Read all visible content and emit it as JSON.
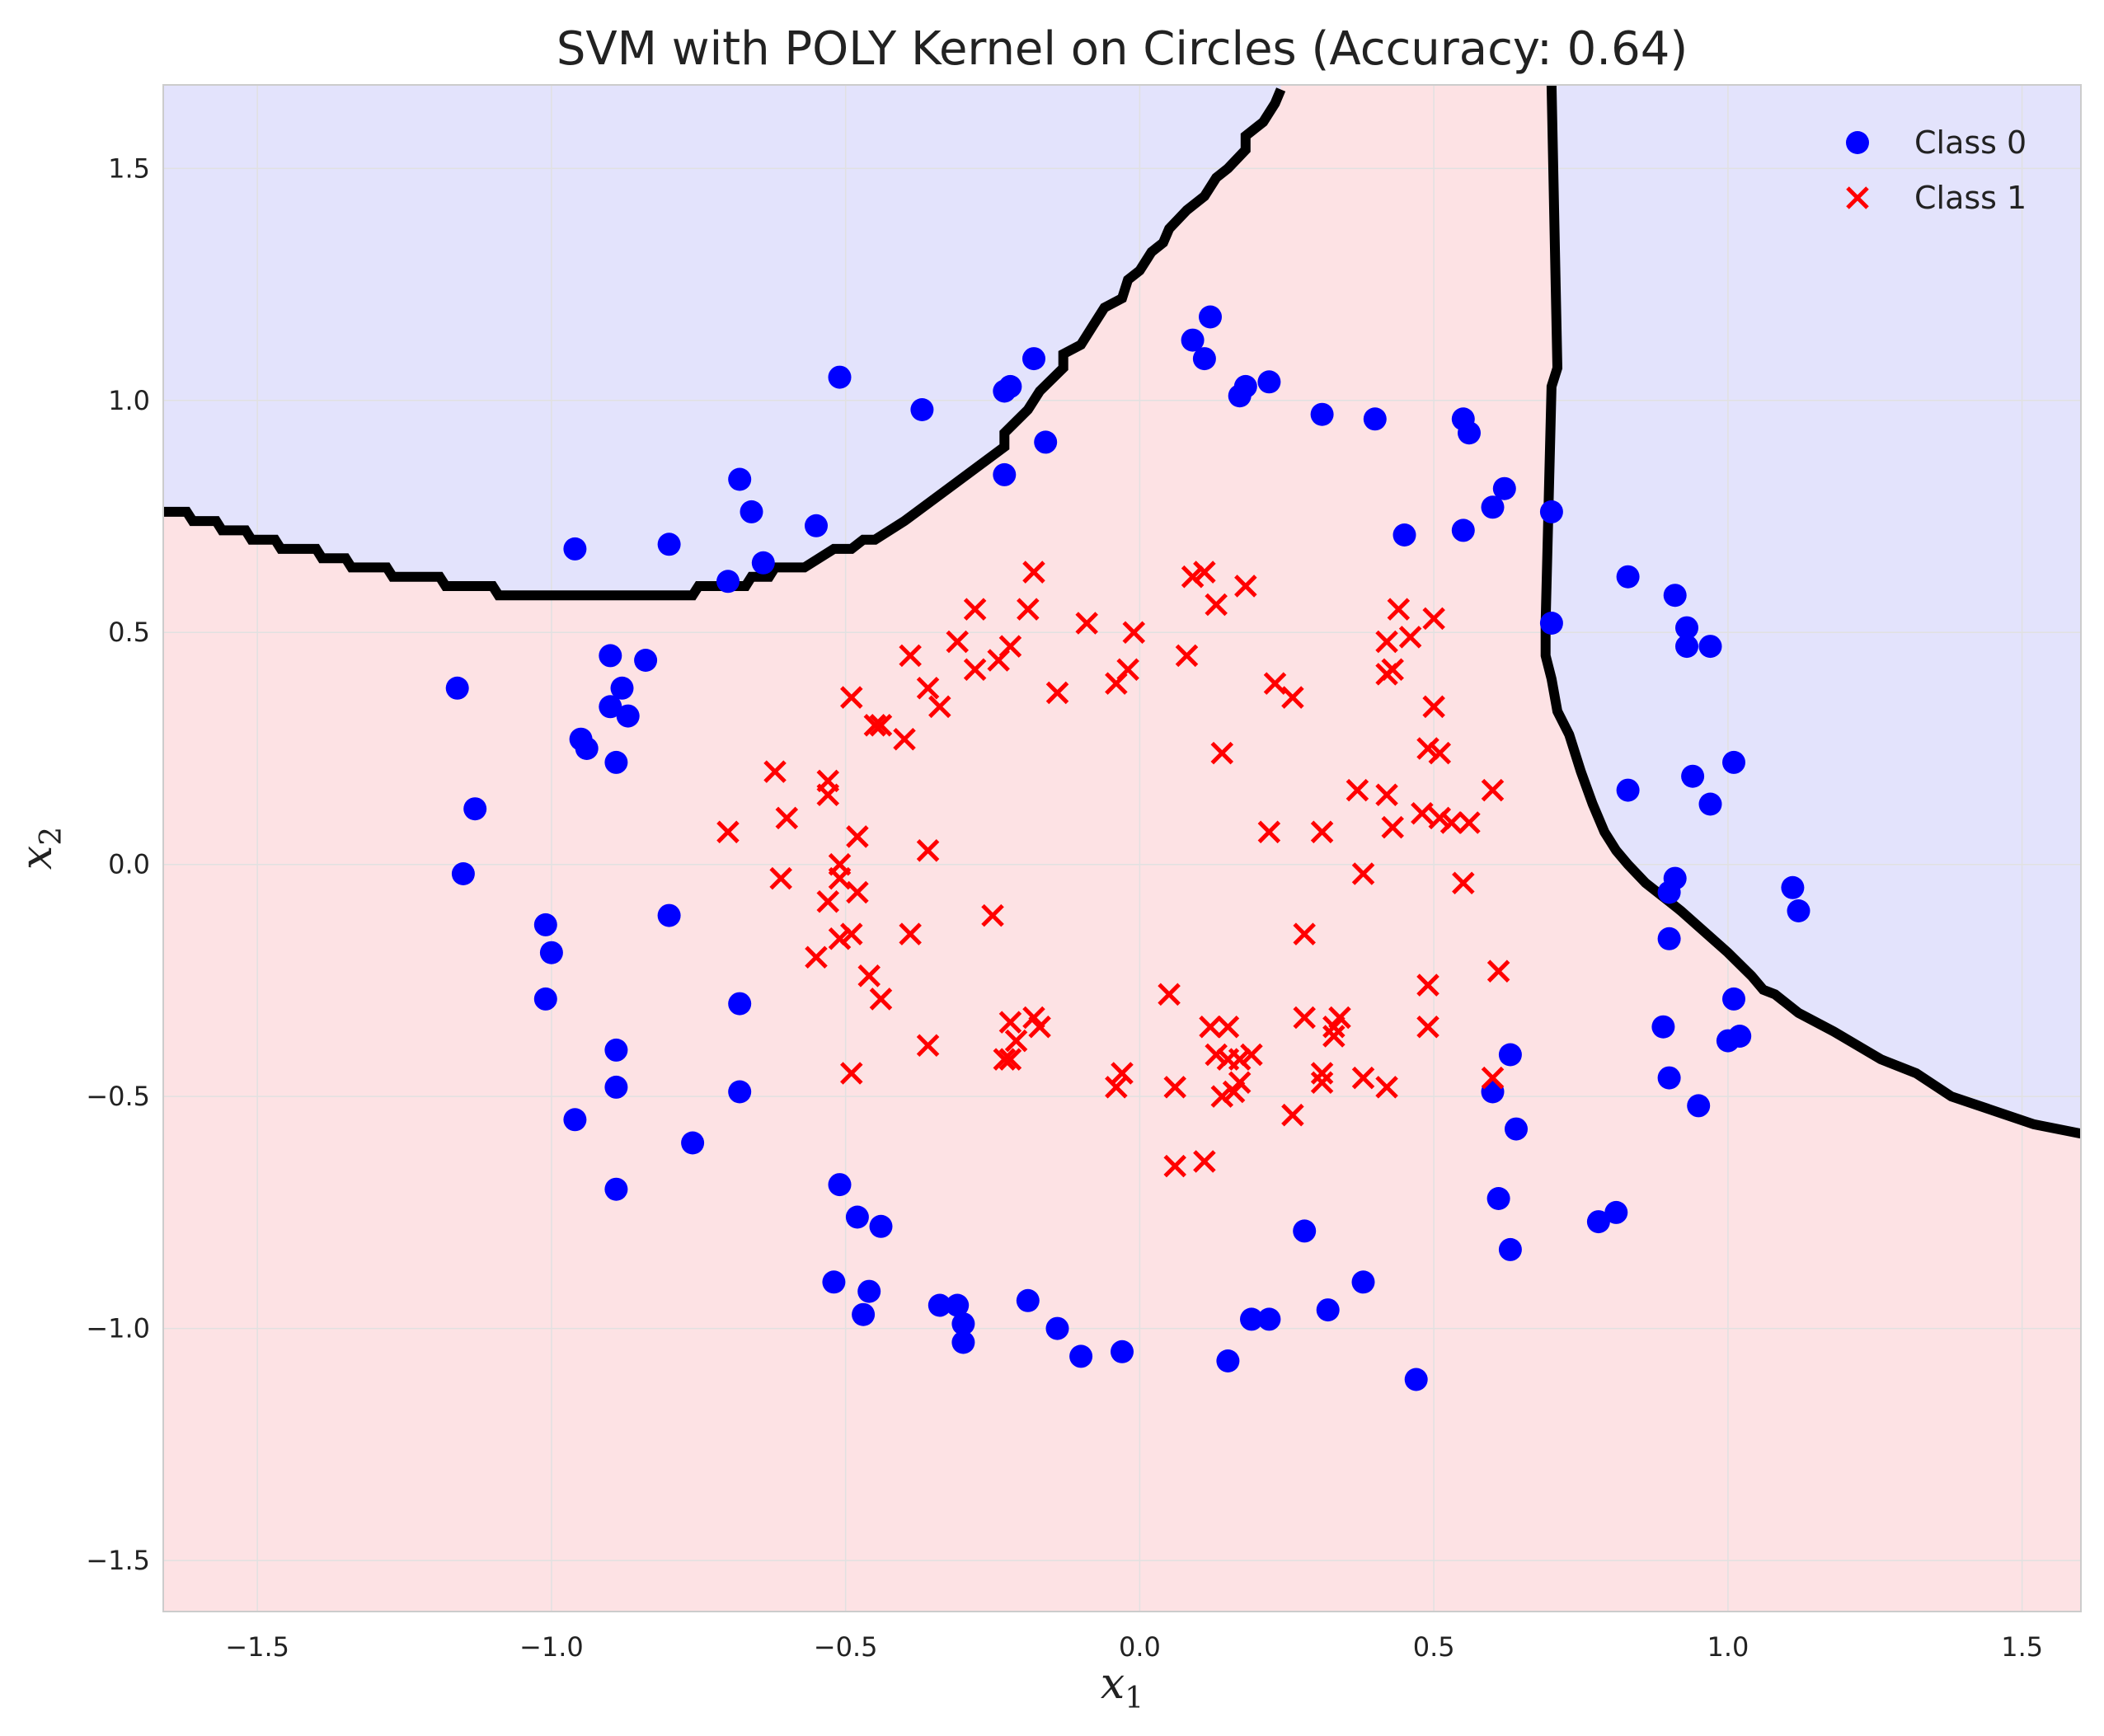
{
  "chart_data": {
    "type": "scatter",
    "title": "SVM with POLY Kernel on Circles (Accuracy: 0.64)",
    "xlabel": "x",
    "xlabel_sub": "1",
    "ylabel": "x",
    "ylabel_sub": "2",
    "xlim": [
      -1.66,
      1.6
    ],
    "ylim": [
      -1.61,
      1.68
    ],
    "xticks": [
      -1.5,
      -1.0,
      -0.5,
      0.0,
      0.5,
      1.0,
      1.5
    ],
    "yticks": [
      -1.5,
      -1.0,
      -0.5,
      0.0,
      0.5,
      1.0,
      1.5
    ],
    "xtick_labels": [
      "−1.5",
      "−1.0",
      "−0.5",
      "0.0",
      "0.5",
      "1.0",
      "1.5"
    ],
    "ytick_labels": [
      "−1.5",
      "−1.0",
      "−0.5",
      "0.0",
      "0.5",
      "1.0",
      "1.5"
    ],
    "grid": true,
    "legend_position": "top-right",
    "colors": {
      "class0": "#0000ff",
      "class1": "#ff0000",
      "region0": "#e3e3fc",
      "region1": "#fde2e4",
      "boundary": "#000000"
    },
    "series": [
      {
        "name": "Class 0",
        "marker": "circle",
        "points": [
          [
            -0.51,
            1.05
          ],
          [
            -0.37,
            0.98
          ],
          [
            -0.23,
            1.02
          ],
          [
            -0.22,
            1.03
          ],
          [
            -0.18,
            1.09
          ],
          [
            -0.23,
            0.84
          ],
          [
            -0.16,
            0.91
          ],
          [
            0.09,
            1.13
          ],
          [
            0.12,
            1.18
          ],
          [
            0.11,
            1.09
          ],
          [
            0.17,
            1.01
          ],
          [
            0.18,
            1.03
          ],
          [
            0.22,
            1.04
          ],
          [
            0.31,
            0.97
          ],
          [
            0.4,
            0.96
          ],
          [
            0.55,
            0.96
          ],
          [
            0.56,
            0.93
          ],
          [
            0.55,
            0.72
          ],
          [
            0.45,
            0.71
          ],
          [
            0.6,
            0.77
          ],
          [
            0.62,
            0.81
          ],
          [
            -0.96,
            0.68
          ],
          [
            -0.8,
            0.69
          ],
          [
            -0.68,
            0.83
          ],
          [
            -0.66,
            0.76
          ],
          [
            -0.7,
            0.61
          ],
          [
            -0.64,
            0.65
          ],
          [
            -0.55,
            0.73
          ],
          [
            -1.16,
            0.38
          ],
          [
            -0.9,
            0.45
          ],
          [
            -0.84,
            0.44
          ],
          [
            -0.88,
            0.38
          ],
          [
            -0.9,
            0.34
          ],
          [
            -0.87,
            0.32
          ],
          [
            -0.95,
            0.27
          ],
          [
            -0.94,
            0.25
          ],
          [
            -0.89,
            0.22
          ],
          [
            -1.13,
            0.12
          ],
          [
            -1.15,
            -0.02
          ],
          [
            -0.8,
            -0.11
          ],
          [
            -1.01,
            -0.13
          ],
          [
            -1.0,
            -0.19
          ],
          [
            -1.01,
            -0.29
          ],
          [
            -0.68,
            -0.3
          ],
          [
            -0.89,
            -0.4
          ],
          [
            -0.89,
            -0.48
          ],
          [
            -0.96,
            -0.55
          ],
          [
            -0.68,
            -0.49
          ],
          [
            -0.76,
            -0.6
          ],
          [
            -0.89,
            -0.7
          ],
          [
            -0.51,
            -0.69
          ],
          [
            -0.48,
            -0.76
          ],
          [
            -0.44,
            -0.78
          ],
          [
            -0.52,
            -0.9
          ],
          [
            -0.46,
            -0.92
          ],
          [
            -0.47,
            -0.97
          ],
          [
            -0.34,
            -0.95
          ],
          [
            -0.31,
            -0.95
          ],
          [
            -0.3,
            -0.99
          ],
          [
            -0.3,
            -1.03
          ],
          [
            -0.19,
            -0.94
          ],
          [
            -0.14,
            -1.0
          ],
          [
            -0.1,
            -1.06
          ],
          [
            -0.03,
            -1.05
          ],
          [
            0.15,
            -1.07
          ],
          [
            0.19,
            -0.98
          ],
          [
            0.22,
            -0.98
          ],
          [
            0.28,
            -0.79
          ],
          [
            0.32,
            -0.96
          ],
          [
            0.38,
            -0.9
          ],
          [
            0.47,
            -1.11
          ],
          [
            0.6,
            -0.49
          ],
          [
            0.63,
            -0.41
          ],
          [
            0.64,
            -0.57
          ],
          [
            0.61,
            -0.72
          ],
          [
            0.63,
            -0.83
          ],
          [
            0.78,
            -0.77
          ],
          [
            0.81,
            -0.75
          ],
          [
            0.7,
            0.76
          ],
          [
            0.7,
            0.52
          ],
          [
            0.83,
            0.62
          ],
          [
            0.91,
            0.58
          ],
          [
            0.93,
            0.51
          ],
          [
            0.93,
            0.47
          ],
          [
            0.97,
            0.47
          ],
          [
            0.83,
            0.16
          ],
          [
            0.94,
            0.19
          ],
          [
            0.97,
            0.13
          ],
          [
            1.01,
            0.22
          ],
          [
            0.91,
            -0.03
          ],
          [
            0.9,
            -0.06
          ],
          [
            0.9,
            -0.16
          ],
          [
            0.89,
            -0.35
          ],
          [
            0.9,
            -0.46
          ],
          [
            0.95,
            -0.52
          ],
          [
            1.0,
            -0.38
          ],
          [
            1.01,
            -0.29
          ],
          [
            1.02,
            -0.37
          ],
          [
            1.11,
            -0.05
          ],
          [
            1.12,
            -0.1
          ]
        ]
      },
      {
        "name": "Class 1",
        "marker": "x",
        "points": [
          [
            -0.28,
            0.55
          ],
          [
            -0.31,
            0.48
          ],
          [
            -0.28,
            0.42
          ],
          [
            -0.24,
            0.44
          ],
          [
            -0.22,
            0.47
          ],
          [
            -0.19,
            0.55
          ],
          [
            -0.18,
            0.63
          ],
          [
            -0.14,
            0.37
          ],
          [
            -0.09,
            0.52
          ],
          [
            -0.39,
            0.45
          ],
          [
            -0.36,
            0.38
          ],
          [
            -0.34,
            0.34
          ],
          [
            -0.4,
            0.27
          ],
          [
            -0.45,
            0.3
          ],
          [
            -0.44,
            0.3
          ],
          [
            -0.49,
            0.36
          ],
          [
            -0.01,
            0.5
          ],
          [
            -0.04,
            0.39
          ],
          [
            -0.02,
            0.42
          ],
          [
            0.08,
            0.45
          ],
          [
            0.09,
            0.62
          ],
          [
            0.11,
            0.63
          ],
          [
            0.13,
            0.56
          ],
          [
            0.18,
            0.6
          ],
          [
            0.23,
            0.39
          ],
          [
            0.26,
            0.36
          ],
          [
            0.14,
            0.24
          ],
          [
            0.22,
            0.07
          ],
          [
            0.31,
            0.07
          ],
          [
            0.42,
            0.48
          ],
          [
            0.44,
            0.55
          ],
          [
            0.46,
            0.49
          ],
          [
            0.42,
            0.41
          ],
          [
            0.43,
            0.42
          ],
          [
            0.5,
            0.34
          ],
          [
            0.5,
            0.53
          ],
          [
            0.49,
            0.25
          ],
          [
            0.51,
            0.24
          ],
          [
            0.37,
            0.16
          ],
          [
            0.42,
            0.15
          ],
          [
            0.43,
            0.08
          ],
          [
            0.48,
            0.11
          ],
          [
            0.51,
            0.1
          ],
          [
            0.53,
            0.09
          ],
          [
            0.56,
            0.09
          ],
          [
            0.6,
            0.16
          ],
          [
            0.55,
            -0.04
          ],
          [
            0.38,
            -0.02
          ],
          [
            -0.7,
            0.07
          ],
          [
            -0.62,
            0.2
          ],
          [
            -0.6,
            0.1
          ],
          [
            -0.53,
            0.18
          ],
          [
            -0.53,
            0.15
          ],
          [
            -0.61,
            -0.03
          ],
          [
            -0.48,
            0.06
          ],
          [
            -0.51,
            0.0
          ],
          [
            -0.51,
            -0.03
          ],
          [
            -0.53,
            -0.08
          ],
          [
            -0.48,
            -0.06
          ],
          [
            -0.51,
            -0.16
          ],
          [
            -0.49,
            -0.15
          ],
          [
            -0.55,
            -0.2
          ],
          [
            -0.46,
            -0.24
          ],
          [
            -0.44,
            -0.29
          ],
          [
            -0.39,
            -0.15
          ],
          [
            -0.36,
            0.03
          ],
          [
            -0.25,
            -0.11
          ],
          [
            -0.36,
            -0.39
          ],
          [
            -0.49,
            -0.45
          ],
          [
            -0.22,
            -0.34
          ],
          [
            -0.21,
            -0.38
          ],
          [
            -0.18,
            -0.33
          ],
          [
            -0.17,
            -0.35
          ],
          [
            -0.23,
            -0.42
          ],
          [
            -0.22,
            -0.42
          ],
          [
            -0.04,
            -0.48
          ],
          [
            -0.03,
            -0.45
          ],
          [
            0.05,
            -0.28
          ],
          [
            0.06,
            -0.48
          ],
          [
            0.06,
            -0.65
          ],
          [
            0.11,
            -0.64
          ],
          [
            0.12,
            -0.35
          ],
          [
            0.15,
            -0.35
          ],
          [
            0.13,
            -0.41
          ],
          [
            0.15,
            -0.42
          ],
          [
            0.17,
            -0.42
          ],
          [
            0.19,
            -0.41
          ],
          [
            0.14,
            -0.5
          ],
          [
            0.16,
            -0.49
          ],
          [
            0.17,
            -0.47
          ],
          [
            0.28,
            -0.15
          ],
          [
            0.28,
            -0.33
          ],
          [
            0.33,
            -0.35
          ],
          [
            0.34,
            -0.33
          ],
          [
            0.33,
            -0.37
          ],
          [
            0.31,
            -0.45
          ],
          [
            0.31,
            -0.47
          ],
          [
            0.38,
            -0.46
          ],
          [
            0.42,
            -0.48
          ],
          [
            0.26,
            -0.54
          ],
          [
            0.49,
            -0.26
          ],
          [
            0.49,
            -0.35
          ],
          [
            0.61,
            -0.23
          ],
          [
            0.6,
            -0.46
          ]
        ]
      }
    ],
    "decision_boundary": [
      [
        [
          -1.66,
          0.76
        ],
        [
          -1.62,
          0.76
        ],
        [
          -1.61,
          0.74
        ],
        [
          -1.57,
          0.74
        ],
        [
          -1.56,
          0.72
        ],
        [
          -1.52,
          0.72
        ],
        [
          -1.51,
          0.7
        ],
        [
          -1.47,
          0.7
        ],
        [
          -1.46,
          0.68
        ],
        [
          -1.4,
          0.68
        ],
        [
          -1.39,
          0.66
        ],
        [
          -1.35,
          0.66
        ],
        [
          -1.34,
          0.64
        ],
        [
          -1.28,
          0.64
        ],
        [
          -1.27,
          0.62
        ],
        [
          -1.19,
          0.62
        ],
        [
          -1.18,
          0.6
        ],
        [
          -1.1,
          0.6
        ],
        [
          -1.09,
          0.58
        ],
        [
          -0.76,
          0.58
        ],
        [
          -0.75,
          0.6
        ],
        [
          -0.67,
          0.6
        ],
        [
          -0.66,
          0.62
        ],
        [
          -0.63,
          0.62
        ],
        [
          -0.62,
          0.64
        ],
        [
          -0.57,
          0.64
        ],
        [
          -0.52,
          0.68
        ],
        [
          -0.49,
          0.68
        ],
        [
          -0.47,
          0.7
        ],
        [
          -0.45,
          0.7
        ],
        [
          -0.4,
          0.74
        ],
        [
          -0.23,
          0.9
        ],
        [
          -0.23,
          0.93
        ],
        [
          -0.19,
          0.98
        ],
        [
          -0.17,
          1.02
        ],
        [
          -0.13,
          1.07
        ],
        [
          -0.13,
          1.1
        ],
        [
          -0.1,
          1.12
        ],
        [
          -0.08,
          1.16
        ],
        [
          -0.06,
          1.2
        ],
        [
          -0.03,
          1.22
        ],
        [
          -0.02,
          1.26
        ],
        [
          0.0,
          1.28
        ],
        [
          0.02,
          1.32
        ],
        [
          0.04,
          1.34
        ],
        [
          0.05,
          1.37
        ],
        [
          0.08,
          1.41
        ],
        [
          0.11,
          1.44
        ],
        [
          0.13,
          1.48
        ],
        [
          0.15,
          1.5
        ],
        [
          0.18,
          1.54
        ],
        [
          0.18,
          1.57
        ],
        [
          0.21,
          1.6
        ],
        [
          0.23,
          1.64
        ],
        [
          0.24,
          1.67
        ]
      ],
      [
        [
          0.7,
          1.68
        ],
        [
          0.71,
          1.07
        ],
        [
          0.7,
          1.03
        ],
        [
          0.69,
          0.52
        ],
        [
          0.69,
          0.45
        ],
        [
          0.7,
          0.4
        ],
        [
          0.71,
          0.33
        ],
        [
          0.73,
          0.28
        ],
        [
          0.75,
          0.2
        ],
        [
          0.77,
          0.13
        ],
        [
          0.79,
          0.07
        ],
        [
          0.81,
          0.03
        ],
        [
          0.83,
          0.0
        ],
        [
          0.86,
          -0.04
        ],
        [
          0.9,
          -0.08
        ],
        [
          0.92,
          -0.1
        ],
        [
          1.0,
          -0.19
        ],
        [
          1.04,
          -0.24
        ],
        [
          1.06,
          -0.27
        ],
        [
          1.08,
          -0.28
        ],
        [
          1.12,
          -0.32
        ],
        [
          1.18,
          -0.36
        ],
        [
          1.26,
          -0.42
        ],
        [
          1.32,
          -0.45
        ],
        [
          1.38,
          -0.5
        ],
        [
          1.45,
          -0.53
        ],
        [
          1.52,
          -0.56
        ],
        [
          1.6,
          -0.58
        ]
      ]
    ]
  }
}
